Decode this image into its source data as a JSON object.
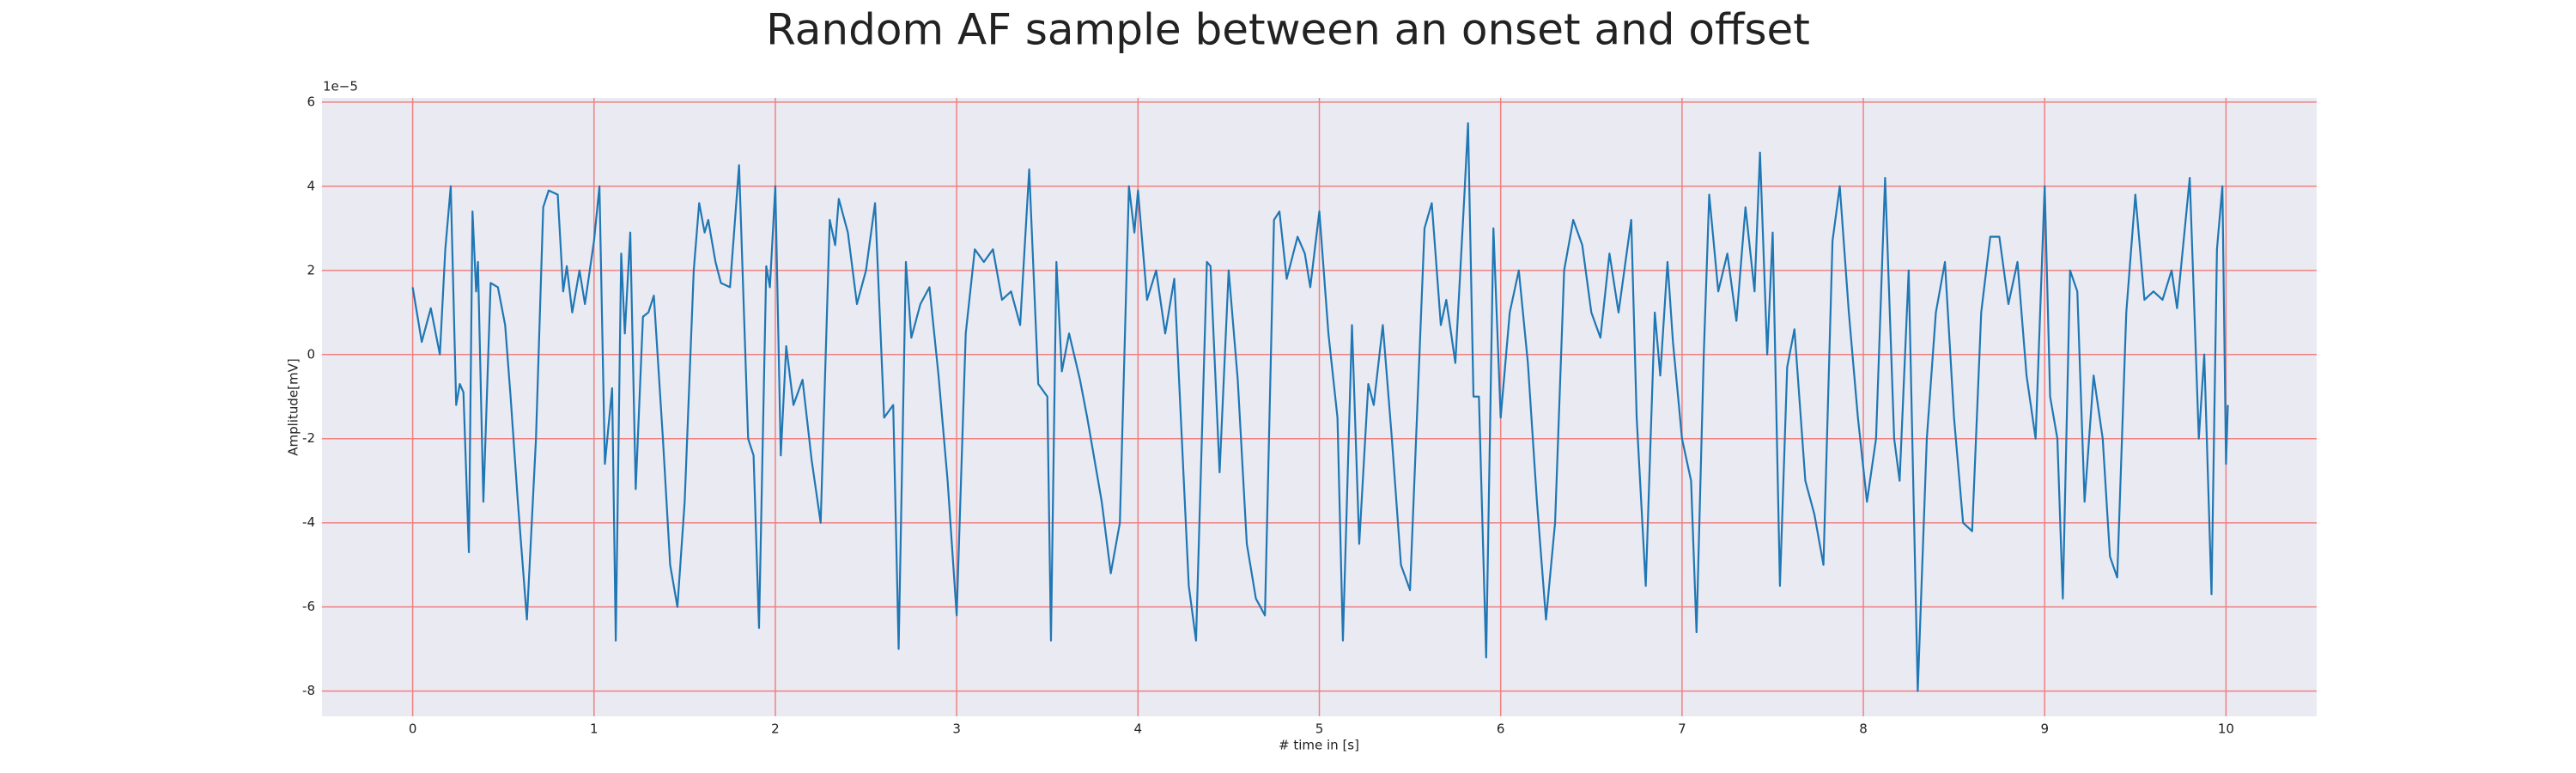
{
  "chart_data": {
    "type": "line",
    "title": "Random AF sample between an onset and offset",
    "x_label": "# time in [s]",
    "y_label": "Amplitude[mV]",
    "y_offset_label": "1e−5",
    "x": [
      0,
      0.05,
      0.1,
      0.15,
      0.18,
      0.21,
      0.24,
      0.26,
      0.28,
      0.31,
      0.33,
      0.35,
      0.36,
      0.39,
      0.43,
      0.47,
      0.51,
      0.54,
      0.58,
      0.63,
      0.68,
      0.72,
      0.75,
      0.8,
      0.83,
      0.85,
      0.88,
      0.92,
      0.95,
      1.0,
      1.03,
      1.06,
      1.1,
      1.12,
      1.15,
      1.17,
      1.2,
      1.23,
      1.27,
      1.3,
      1.33,
      1.38,
      1.42,
      1.46,
      1.5,
      1.55,
      1.58,
      1.61,
      1.63,
      1.67,
      1.7,
      1.75,
      1.8,
      1.85,
      1.88,
      1.91,
      1.95,
      1.97,
      2.0,
      2.03,
      2.06,
      2.1,
      2.15,
      2.2,
      2.25,
      2.3,
      2.33,
      2.35,
      2.4,
      2.45,
      2.5,
      2.55,
      2.6,
      2.65,
      2.68,
      2.72,
      2.75,
      2.8,
      2.85,
      2.9,
      2.95,
      3.0,
      3.05,
      3.1,
      3.15,
      3.2,
      3.25,
      3.3,
      3.35,
      3.4,
      3.45,
      3.5,
      3.52,
      3.55,
      3.58,
      3.62,
      3.68,
      3.72,
      3.8,
      3.85,
      3.9,
      3.95,
      3.98,
      4.0,
      4.05,
      4.1,
      4.15,
      4.2,
      4.28,
      4.32,
      4.38,
      4.4,
      4.45,
      4.5,
      4.55,
      4.6,
      4.65,
      4.7,
      4.75,
      4.78,
      4.82,
      4.88,
      4.92,
      4.95,
      5.0,
      5.05,
      5.1,
      5.13,
      5.18,
      5.22,
      5.27,
      5.3,
      5.35,
      5.4,
      5.45,
      5.5,
      5.58,
      5.62,
      5.67,
      5.7,
      5.75,
      5.8,
      5.82,
      5.85,
      5.88,
      5.92,
      5.96,
      6.0,
      6.05,
      6.1,
      6.15,
      6.2,
      6.25,
      6.3,
      6.35,
      6.4,
      6.45,
      6.5,
      6.55,
      6.6,
      6.65,
      6.72,
      6.75,
      6.8,
      6.85,
      6.88,
      6.92,
      6.95,
      7.0,
      7.05,
      7.08,
      7.12,
      7.15,
      7.2,
      7.25,
      7.3,
      7.35,
      7.4,
      7.43,
      7.47,
      7.5,
      7.54,
      7.58,
      7.62,
      7.68,
      7.73,
      7.78,
      7.83,
      7.87,
      7.92,
      7.97,
      8.02,
      8.07,
      8.12,
      8.17,
      8.2,
      8.25,
      8.3,
      8.35,
      8.4,
      8.45,
      8.5,
      8.55,
      8.6,
      8.65,
      8.7,
      8.75,
      8.8,
      8.85,
      8.9,
      8.95,
      9.0,
      9.03,
      9.07,
      9.1,
      9.14,
      9.18,
      9.22,
      9.27,
      9.32,
      9.36,
      9.4,
      9.45,
      9.5,
      9.55,
      9.6,
      9.65,
      9.7,
      9.73,
      9.8,
      9.85,
      9.88,
      9.92,
      9.95,
      9.98,
      10.0,
      10.01
    ],
    "series": [
      {
        "color": "#1f77b4",
        "values": [
          1.6,
          0.3,
          1.1,
          0.0,
          2.5,
          4.0,
          -1.2,
          -0.7,
          -0.9,
          -4.7,
          3.4,
          1.5,
          2.2,
          -3.5,
          1.7,
          1.6,
          0.7,
          -1.0,
          -3.5,
          -6.3,
          -2.0,
          3.5,
          3.9,
          3.8,
          1.5,
          2.1,
          1.0,
          2.0,
          1.2,
          2.7,
          4.0,
          -2.6,
          -0.8,
          -6.8,
          2.4,
          0.5,
          2.9,
          -3.2,
          0.9,
          1.0,
          1.4,
          -2.0,
          -5.0,
          -6.0,
          -3.5,
          2.0,
          3.6,
          2.9,
          3.2,
          2.2,
          1.7,
          1.6,
          4.5,
          -2.0,
          -2.4,
          -6.5,
          2.1,
          1.6,
          4.0,
          -2.4,
          0.2,
          -1.2,
          -0.6,
          -2.5,
          -4.0,
          3.2,
          2.6,
          3.7,
          2.9,
          1.2,
          2.0,
          3.6,
          -1.5,
          -1.2,
          -7.0,
          2.2,
          0.4,
          1.2,
          1.6,
          -0.5,
          -3.0,
          -6.2,
          0.5,
          2.5,
          2.2,
          2.5,
          1.3,
          1.5,
          0.7,
          4.4,
          -0.7,
          -1.0,
          -6.8,
          2.2,
          -0.4,
          0.5,
          -0.6,
          -1.5,
          -3.5,
          -5.2,
          -4.0,
          4.0,
          2.9,
          3.9,
          1.3,
          2.0,
          0.5,
          1.8,
          -5.5,
          -6.8,
          2.2,
          2.1,
          -2.8,
          2.0,
          -0.6,
          -4.5,
          -5.8,
          -6.2,
          3.2,
          3.4,
          1.8,
          2.8,
          2.4,
          1.6,
          3.4,
          0.5,
          -1.5,
          -6.8,
          0.7,
          -4.5,
          -0.7,
          -1.2,
          0.7,
          -2.0,
          -5.0,
          -5.6,
          3.0,
          3.6,
          0.7,
          1.3,
          -0.2,
          3.8,
          5.5,
          -1.0,
          -1.0,
          -7.2,
          3.0,
          -1.5,
          1.0,
          2.0,
          -0.2,
          -3.5,
          -6.3,
          -4.0,
          2.0,
          3.2,
          2.6,
          1.0,
          0.4,
          2.4,
          1.0,
          3.2,
          -1.5,
          -5.5,
          1.0,
          -0.5,
          2.2,
          0.3,
          -2.0,
          -3.0,
          -6.6,
          0.0,
          3.8,
          1.5,
          2.4,
          0.8,
          3.5,
          1.5,
          4.8,
          0.0,
          2.9,
          -5.5,
          -0.3,
          0.6,
          -3.0,
          -3.8,
          -5.0,
          2.7,
          4.0,
          1.0,
          -1.5,
          -3.5,
          -2.0,
          4.2,
          -2.0,
          -3.0,
          2.0,
          -8.0,
          -2.0,
          1.0,
          2.2,
          -1.5,
          -4.0,
          -4.2,
          1.0,
          2.8,
          2.8,
          1.2,
          2.2,
          -0.5,
          -2.0,
          4.0,
          -1.0,
          -2.0,
          -5.8,
          2.0,
          1.5,
          -3.5,
          -0.5,
          -2.0,
          -4.8,
          -5.3,
          1.0,
          3.8,
          1.3,
          1.5,
          1.3,
          2.0,
          1.1,
          4.2,
          -2.0,
          0.0,
          -5.7,
          2.5,
          4.0,
          -2.6,
          -1.2
        ]
      }
    ],
    "xlim": [
      -0.5,
      10.5
    ],
    "ylim": [
      -8.6,
      6.1
    ],
    "xticks": [
      0,
      1,
      2,
      3,
      4,
      5,
      6,
      7,
      8,
      9,
      10
    ],
    "yticks": [
      -8,
      -6,
      -4,
      -2,
      0,
      2,
      4,
      6
    ],
    "grid": true,
    "grid_color": "#f08080",
    "background": "#eaeaf2"
  }
}
